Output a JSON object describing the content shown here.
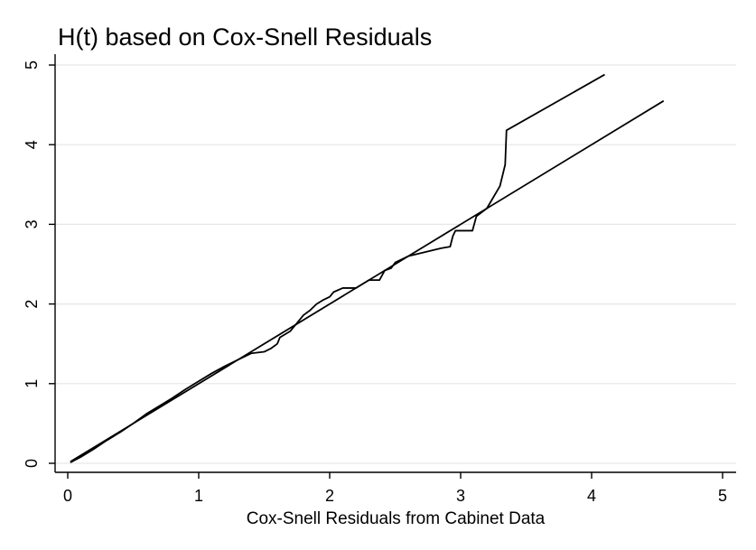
{
  "chart_data": {
    "type": "line",
    "title": "H(t) based on Cox-Snell Residuals",
    "xlabel": "Cox-Snell Residuals from Cabinet Data",
    "ylabel": "",
    "xlim": [
      0,
      5
    ],
    "ylim": [
      0,
      5
    ],
    "xticks": [
      "0",
      "1",
      "2",
      "3",
      "4",
      "5"
    ],
    "yticks": [
      "0",
      "1",
      "2",
      "3",
      "4",
      "5"
    ],
    "grid": true,
    "legend": "none",
    "series": [
      {
        "name": "",
        "kind": "step",
        "color": "#000000",
        "points": [
          [
            0.02,
            0.01
          ],
          [
            0.1,
            0.08
          ],
          [
            0.2,
            0.18
          ],
          [
            0.3,
            0.29
          ],
          [
            0.4,
            0.39
          ],
          [
            0.5,
            0.5
          ],
          [
            0.6,
            0.62
          ],
          [
            0.7,
            0.72
          ],
          [
            0.8,
            0.82
          ],
          [
            0.9,
            0.93
          ],
          [
            1.0,
            1.03
          ],
          [
            1.1,
            1.13
          ],
          [
            1.2,
            1.22
          ],
          [
            1.3,
            1.3
          ],
          [
            1.4,
            1.38
          ],
          [
            1.5,
            1.4
          ],
          [
            1.55,
            1.44
          ],
          [
            1.6,
            1.5
          ],
          [
            1.62,
            1.58
          ],
          [
            1.7,
            1.66
          ],
          [
            1.8,
            1.86
          ],
          [
            1.85,
            1.92
          ],
          [
            1.9,
            2.0
          ],
          [
            1.95,
            2.05
          ],
          [
            2.0,
            2.09
          ],
          [
            2.03,
            2.15
          ],
          [
            2.1,
            2.2
          ],
          [
            2.2,
            2.2
          ],
          [
            2.3,
            2.3
          ],
          [
            2.38,
            2.3
          ],
          [
            2.42,
            2.42
          ],
          [
            2.47,
            2.45
          ],
          [
            2.5,
            2.52
          ],
          [
            2.6,
            2.6
          ],
          [
            2.7,
            2.64
          ],
          [
            2.85,
            2.7
          ],
          [
            2.92,
            2.72
          ],
          [
            2.94,
            2.85
          ],
          [
            2.96,
            2.92
          ],
          [
            3.09,
            2.92
          ],
          [
            3.12,
            3.1
          ],
          [
            3.2,
            3.2
          ],
          [
            3.3,
            3.48
          ],
          [
            3.34,
            3.75
          ],
          [
            3.35,
            4.18
          ],
          [
            4.1,
            4.88
          ]
        ]
      },
      {
        "name": "",
        "kind": "reference",
        "color": "#000000",
        "points": [
          [
            0.02,
            0.02
          ],
          [
            4.55,
            4.55
          ]
        ]
      }
    ]
  }
}
